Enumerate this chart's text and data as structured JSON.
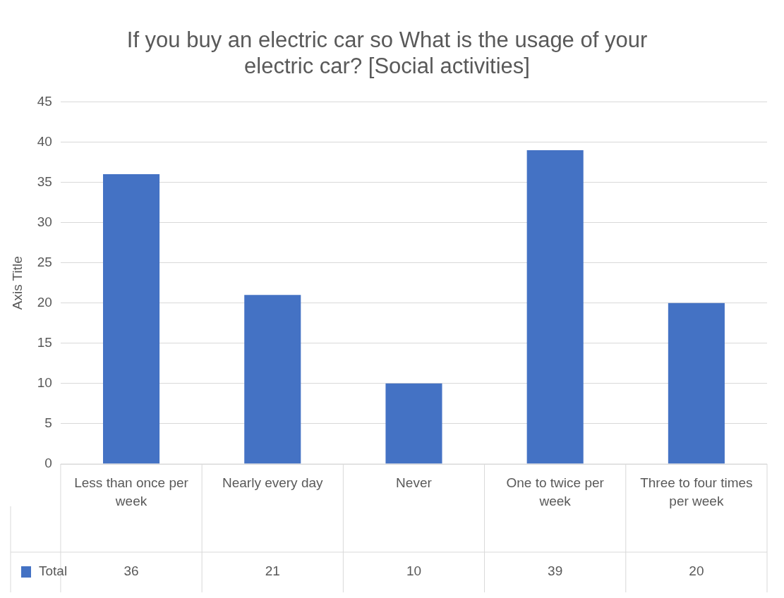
{
  "chart_data": {
    "type": "bar",
    "title": "If you buy an electric car so What is the usage of your electric car? [Social activities]",
    "categories": [
      "Less than once per week",
      "Nearly every day",
      "Never",
      "One to twice per week",
      "Three to four times per week"
    ],
    "series": [
      {
        "name": "Total",
        "color": "#4472c4",
        "values": [
          36,
          21,
          10,
          39,
          20
        ]
      }
    ],
    "ylabel": "Axis Title",
    "ylim": [
      0,
      45
    ],
    "yticks": [
      0,
      5,
      10,
      15,
      20,
      25,
      30,
      35,
      40,
      45
    ],
    "grid": "y",
    "legend": "bottom",
    "data_labels": true
  }
}
